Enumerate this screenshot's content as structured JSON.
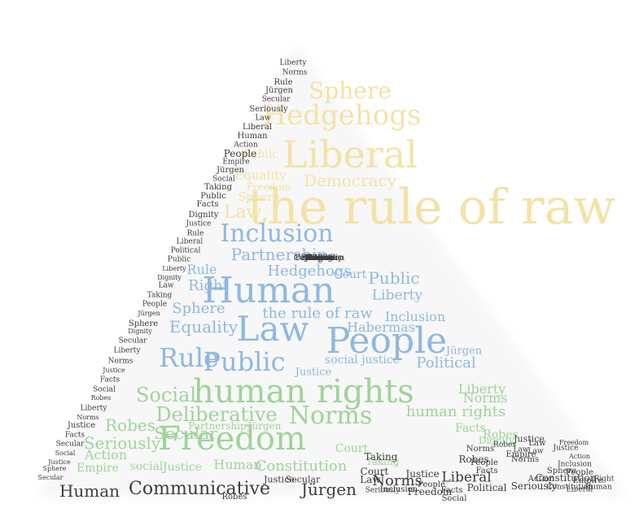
{
  "palette": {
    "yellow": "#f3e3a8",
    "blue": "#8fb8df",
    "green": "#9fd39a",
    "gray": "#3d3d3d",
    "background": "#ffffff"
  },
  "words": [
    {
      "text": "the rule of raw",
      "color": "yellow"
    },
    {
      "text": "Liberal",
      "color": "yellow"
    },
    {
      "text": "Hedgehogs",
      "color": "yellow"
    },
    {
      "text": "Sphere",
      "color": "yellow"
    },
    {
      "text": "Democracy",
      "color": "yellow"
    },
    {
      "text": "Law",
      "color": "yellow"
    },
    {
      "text": "Equality",
      "color": "yellow"
    },
    {
      "text": "Public",
      "color": "yellow"
    },
    {
      "text": "Sphere",
      "color": "yellow"
    },
    {
      "text": "Freedom",
      "color": "yellow"
    },
    {
      "text": "Human",
      "color": "blue"
    },
    {
      "text": "Law",
      "color": "blue"
    },
    {
      "text": "People",
      "color": "blue"
    },
    {
      "text": "Public",
      "color": "blue"
    },
    {
      "text": "Rule",
      "color": "blue"
    },
    {
      "text": "Inclusion",
      "color": "blue"
    },
    {
      "text": "Partnership",
      "color": "blue"
    },
    {
      "text": "Hedgehogs",
      "color": "blue"
    },
    {
      "text": "Court",
      "color": "blue"
    },
    {
      "text": "Public",
      "color": "blue"
    },
    {
      "text": "Liberty",
      "color": "blue"
    },
    {
      "text": "the rule of raw",
      "color": "blue"
    },
    {
      "text": "Inclusion",
      "color": "blue"
    },
    {
      "text": "Sphere",
      "color": "blue"
    },
    {
      "text": "Equality",
      "color": "blue"
    },
    {
      "text": "Right",
      "color": "blue"
    },
    {
      "text": "Rule",
      "color": "blue"
    },
    {
      "text": "Habermas",
      "color": "blue"
    },
    {
      "text": "Political",
      "color": "blue"
    },
    {
      "text": "social justice",
      "color": "blue"
    },
    {
      "text": "Justice",
      "color": "blue"
    },
    {
      "text": "Jürgen",
      "color": "blue"
    },
    {
      "text": "human rights",
      "color": "green"
    },
    {
      "text": "Freedom",
      "color": "green"
    },
    {
      "text": "Social",
      "color": "green"
    },
    {
      "text": "Norms",
      "color": "green"
    },
    {
      "text": "Deliberative",
      "color": "green"
    },
    {
      "text": "Secular",
      "color": "green"
    },
    {
      "text": "Robes",
      "color": "green"
    },
    {
      "text": "Seriously",
      "color": "green"
    },
    {
      "text": "Action",
      "color": "green"
    },
    {
      "text": "Empire",
      "color": "green"
    },
    {
      "text": "social",
      "color": "green"
    },
    {
      "text": "Justice",
      "color": "green"
    },
    {
      "text": "Human",
      "color": "green"
    },
    {
      "text": "Constitution",
      "color": "green"
    },
    {
      "text": "Court",
      "color": "green"
    },
    {
      "text": "Taking",
      "color": "green"
    },
    {
      "text": "human rights",
      "color": "green"
    },
    {
      "text": "Liberty",
      "color": "green"
    },
    {
      "text": "Norms",
      "color": "green"
    },
    {
      "text": "Facts",
      "color": "green"
    },
    {
      "text": "Robes",
      "color": "green"
    },
    {
      "text": "Dignity",
      "color": "green"
    },
    {
      "text": "Partnership",
      "color": "green"
    },
    {
      "text": "Jürgen",
      "color": "green"
    },
    {
      "text": "Human",
      "color": "gray"
    },
    {
      "text": "Communicative",
      "color": "gray"
    },
    {
      "text": "Jürgen",
      "color": "gray"
    },
    {
      "text": "Norms",
      "color": "gray"
    },
    {
      "text": "Liberal",
      "color": "gray"
    },
    {
      "text": "Freedom",
      "color": "gray"
    },
    {
      "text": "Robes",
      "color": "gray"
    },
    {
      "text": "Justice",
      "color": "gray"
    },
    {
      "text": "Law",
      "color": "gray"
    },
    {
      "text": "Court",
      "color": "gray"
    },
    {
      "text": "Constitution",
      "color": "gray"
    },
    {
      "text": "Political",
      "color": "gray"
    },
    {
      "text": "Taking",
      "color": "gray"
    },
    {
      "text": "Inclusion",
      "color": "gray"
    },
    {
      "text": "People",
      "color": "gray"
    },
    {
      "text": "Empire",
      "color": "gray"
    },
    {
      "text": "Sphere",
      "color": "gray"
    },
    {
      "text": "Action",
      "color": "gray"
    },
    {
      "text": "Seriously",
      "color": "gray"
    },
    {
      "text": "Secular",
      "color": "gray"
    },
    {
      "text": "Justice",
      "color": "gray"
    },
    {
      "text": "Facts",
      "color": "gray"
    },
    {
      "text": "Social",
      "color": "gray"
    },
    {
      "text": "Robes",
      "color": "gray"
    },
    {
      "text": "Liberty",
      "color": "gray"
    },
    {
      "text": "Norms",
      "color": "gray"
    },
    {
      "text": "Rule",
      "color": "gray"
    },
    {
      "text": "Jürgen",
      "color": "gray"
    },
    {
      "text": "Secular",
      "color": "gray"
    },
    {
      "text": "Seriously",
      "color": "gray"
    },
    {
      "text": "Law",
      "color": "gray"
    },
    {
      "text": "Liberal",
      "color": "gray"
    },
    {
      "text": "Human",
      "color": "gray"
    },
    {
      "text": "Action",
      "color": "gray"
    },
    {
      "text": "People",
      "color": "gray"
    },
    {
      "text": "Empire",
      "color": "gray"
    },
    {
      "text": "Jürgen",
      "color": "gray"
    },
    {
      "text": "Social",
      "color": "gray"
    },
    {
      "text": "Taking",
      "color": "gray"
    },
    {
      "text": "Public",
      "color": "gray"
    },
    {
      "text": "Facts",
      "color": "gray"
    },
    {
      "text": "Dignity",
      "color": "gray"
    },
    {
      "text": "Justice",
      "color": "gray"
    },
    {
      "text": "Rule",
      "color": "gray"
    },
    {
      "text": "Liberal",
      "color": "gray"
    },
    {
      "text": "Political",
      "color": "gray"
    },
    {
      "text": "Public",
      "color": "gray"
    },
    {
      "text": "Liberty",
      "color": "gray"
    },
    {
      "text": "Dignity",
      "color": "gray"
    },
    {
      "text": "Law",
      "color": "gray"
    },
    {
      "text": "Taking",
      "color": "gray"
    },
    {
      "text": "People",
      "color": "gray"
    },
    {
      "text": "Jürgen",
      "color": "gray"
    },
    {
      "text": "Sphere",
      "color": "gray"
    },
    {
      "text": "Dignity",
      "color": "gray"
    },
    {
      "text": "Secular",
      "color": "gray"
    },
    {
      "text": "Liberty",
      "color": "gray"
    },
    {
      "text": "Norms",
      "color": "gray"
    },
    {
      "text": "Justice",
      "color": "gray"
    },
    {
      "text": "Facts",
      "color": "gray"
    },
    {
      "text": "Social",
      "color": "gray"
    },
    {
      "text": "Robes",
      "color": "gray"
    },
    {
      "text": "Liberty",
      "color": "gray"
    },
    {
      "text": "Norms",
      "color": "gray"
    },
    {
      "text": "Justice",
      "color": "gray"
    },
    {
      "text": "Facts",
      "color": "gray"
    },
    {
      "text": "Secular",
      "color": "gray"
    },
    {
      "text": "Social",
      "color": "gray"
    },
    {
      "text": "Justice",
      "color": "gray"
    },
    {
      "text": "Sphere",
      "color": "gray"
    },
    {
      "text": "Secular",
      "color": "gray"
    },
    {
      "text": "Justice",
      "color": "gray"
    },
    {
      "text": "Law",
      "color": "gray"
    },
    {
      "text": "Norms",
      "color": "gray"
    },
    {
      "text": "People",
      "color": "gray"
    },
    {
      "text": "Empire",
      "color": "gray"
    },
    {
      "text": "Human",
      "color": "gray"
    },
    {
      "text": "Right",
      "color": "gray"
    },
    {
      "text": "Constitution",
      "color": "gray"
    },
    {
      "text": "Freedom",
      "color": "gray"
    },
    {
      "text": "Action",
      "color": "gray"
    },
    {
      "text": "Justice",
      "color": "gray"
    },
    {
      "text": "Law",
      "color": "gray"
    },
    {
      "text": "Norms",
      "color": "gray"
    },
    {
      "text": "People",
      "color": "gray"
    },
    {
      "text": "Facts",
      "color": "gray"
    },
    {
      "text": "Liberal",
      "color": "gray"
    },
    {
      "text": "Law",
      "color": "gray"
    },
    {
      "text": "Robes",
      "color": "gray"
    },
    {
      "text": "Seriously",
      "color": "gray"
    },
    {
      "text": "Inclusion",
      "color": "gray"
    },
    {
      "text": "Justice",
      "color": "gray"
    },
    {
      "text": "Norms",
      "color": "gray"
    },
    {
      "text": "Taking",
      "color": "gray"
    },
    {
      "text": "Political",
      "color": "gray"
    },
    {
      "text": "Human",
      "color": "gray"
    },
    {
      "text": "Norms",
      "color": "gray"
    },
    {
      "text": "Justice",
      "color": "gray"
    },
    {
      "text": "Freedom",
      "color": "gray"
    },
    {
      "text": "Constitution",
      "color": "gray"
    },
    {
      "text": "Taking",
      "color": "gray"
    },
    {
      "text": "Court",
      "color": "gray"
    },
    {
      "text": "Partnership",
      "color": "gray"
    },
    {
      "text": "Robes",
      "color": "gray"
    },
    {
      "text": "Norms",
      "color": "gray"
    },
    {
      "text": "Empire",
      "color": "gray"
    },
    {
      "text": "People",
      "color": "gray"
    }
  ]
}
